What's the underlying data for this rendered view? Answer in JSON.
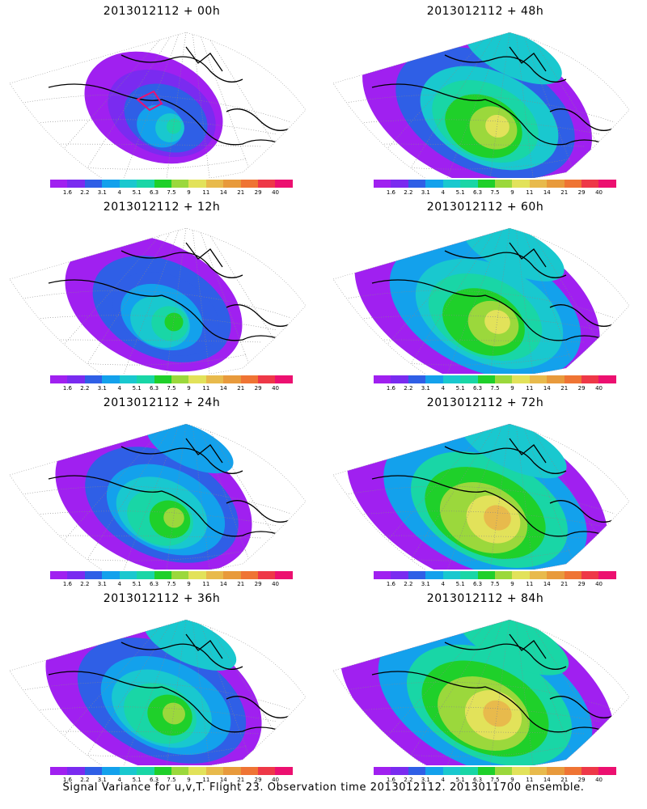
{
  "figure": {
    "footer": "Signal Variance for u,v,T. Flight 23. Observation time 2013012112. 2013011700 ensemble."
  },
  "colorbar": {
    "colors": [
      "#a020f0",
      "#7a2bf0",
      "#2f5fe6",
      "#13a1ec",
      "#19c8cf",
      "#19d6a6",
      "#1fd02a",
      "#9bd83c",
      "#e2e25a",
      "#e8ba4c",
      "#e89a3c",
      "#ef7434",
      "#ee3848",
      "#ec1070"
    ],
    "labels": [
      "1.6",
      "2.2",
      "3.1",
      "4",
      "5.1",
      "6.3",
      "7.5",
      "9",
      "11",
      "14",
      "21",
      "29",
      "40"
    ]
  },
  "panels": [
    {
      "title": "2013012112 + 00h",
      "level": 0.15
    },
    {
      "title": "2013012112 + 48h",
      "level": 0.62
    },
    {
      "title": "2013012112 + 12h",
      "level": 0.35
    },
    {
      "title": "2013012112 + 60h",
      "level": 0.7
    },
    {
      "title": "2013012112 + 24h",
      "level": 0.45
    },
    {
      "title": "2013012112 + 72h",
      "level": 0.78
    },
    {
      "title": "2013012112 + 36h",
      "level": 0.55
    },
    {
      "title": "2013012112 + 84h",
      "level": 0.85
    }
  ]
}
